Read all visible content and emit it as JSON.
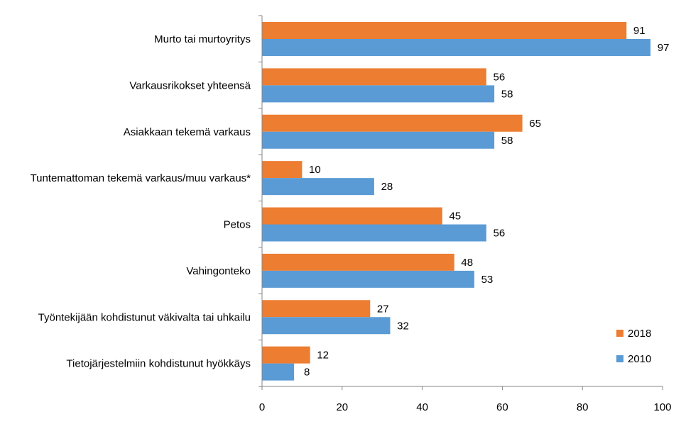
{
  "chart_data": {
    "type": "bar",
    "orientation": "horizontal",
    "categories": [
      "Murto tai murtoyritys",
      "Varkausrikokset yhteensä",
      "Asiakkaan tekemä varkaus",
      "Tuntemattoman tekemä varkaus/muu varkaus*",
      "Petos",
      "Vahingonteko",
      "Työntekijään kohdistunut väkivalta tai uhkailu",
      "Tietojärjestelmiin kohdistunut hyökkäys"
    ],
    "series": [
      {
        "name": "2018",
        "color": "#ED7D31",
        "values": [
          91,
          56,
          65,
          10,
          45,
          48,
          27,
          12
        ]
      },
      {
        "name": "2010",
        "color": "#5B9BD5",
        "values": [
          97,
          58,
          58,
          28,
          56,
          53,
          32,
          8
        ]
      }
    ],
    "xlim": [
      0,
      100
    ],
    "xticks": [
      0,
      20,
      40,
      60,
      80,
      100
    ],
    "grid": false,
    "legend_position": "bottom-right",
    "data_labels": true
  }
}
